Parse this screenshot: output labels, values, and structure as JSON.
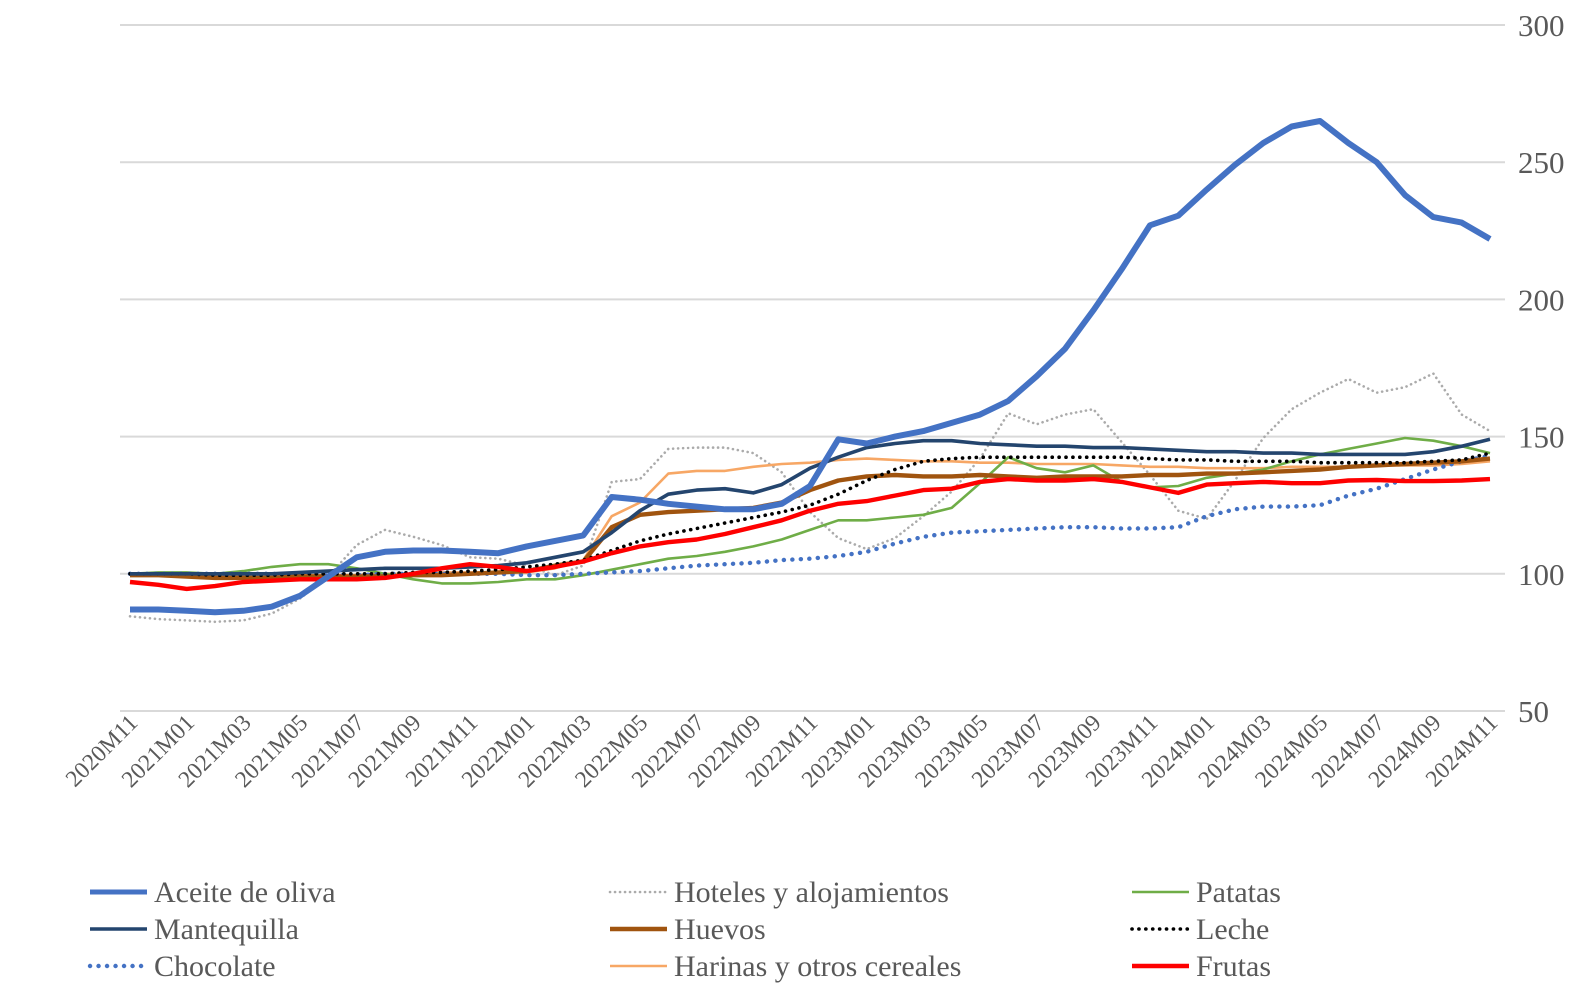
{
  "chart_data": {
    "type": "line",
    "title": "",
    "xlabel": "",
    "ylabel": "",
    "ylim": [
      50,
      300
    ],
    "yticks": [
      300,
      250,
      200,
      150,
      100,
      50
    ],
    "grid": "horizontal",
    "legend_position": "bottom",
    "axis_text_color": "#595959",
    "gridline_color": "#D9D9D9",
    "x": [
      "2020M11",
      "2020M12",
      "2021M01",
      "2021M02",
      "2021M03",
      "2021M04",
      "2021M05",
      "2021M06",
      "2021M07",
      "2021M08",
      "2021M09",
      "2021M10",
      "2021M11",
      "2021M12",
      "2022M01",
      "2022M02",
      "2022M03",
      "2022M04",
      "2022M05",
      "2022M06",
      "2022M07",
      "2022M08",
      "2022M09",
      "2022M10",
      "2022M11",
      "2022M12",
      "2023M01",
      "2023M02",
      "2023M03",
      "2023M04",
      "2023M05",
      "2023M06",
      "2023M07",
      "2023M08",
      "2023M09",
      "2023M10",
      "2023M11",
      "2023M12",
      "2024M01",
      "2024M02",
      "2024M03",
      "2024M04",
      "2024M05",
      "2024M06",
      "2024M07",
      "2024M08",
      "2024M09",
      "2024M10",
      "2024M11"
    ],
    "x_tick_labels": [
      "2020M11",
      "2021M01",
      "2021M03",
      "2021M05",
      "2021M07",
      "2021M09",
      "2021M11",
      "2022M01",
      "2022M03",
      "2022M05",
      "2022M07",
      "2022M09",
      "2022M11",
      "2023M01",
      "2023M03",
      "2023M05",
      "2023M07",
      "2023M09",
      "2023M11",
      "2024M01",
      "2024M03",
      "2024M05",
      "2024M07",
      "2024M09",
      "2024M11"
    ],
    "series": [
      {
        "name": "Hoteles y alojamientos",
        "color": "#ABABAB",
        "dash": "dotted",
        "width": 2.6,
        "values": [
          84.5,
          83.5,
          83,
          82.5,
          83,
          85.5,
          91,
          99,
          110.5,
          116,
          113.5,
          110.5,
          106,
          105.5,
          103,
          99.5,
          103,
          133.5,
          134.5,
          145.5,
          146,
          146,
          144,
          137,
          122.5,
          113,
          109,
          113,
          121,
          130,
          142,
          158.5,
          154.5,
          158,
          160,
          148,
          136,
          123,
          120,
          134,
          149.5,
          160,
          166,
          171,
          166,
          168,
          173,
          158,
          152
        ]
      },
      {
        "name": "Harinas y otros cereales",
        "color": "#F7A765",
        "dash": "solid",
        "width": 2.6,
        "values": [
          99.5,
          99.5,
          99,
          99,
          99,
          99,
          99.5,
          99.5,
          99.5,
          100,
          100,
          100.5,
          100.5,
          100.5,
          100.5,
          102,
          105,
          121,
          126,
          136.5,
          137.5,
          137.5,
          139,
          140,
          140.5,
          141.5,
          142,
          141.5,
          141,
          141,
          140.5,
          140.5,
          140,
          140,
          140,
          139.5,
          139,
          139,
          138.5,
          138.5,
          138.5,
          139,
          139,
          139,
          139.5,
          139.5,
          139.5,
          140,
          141
        ]
      },
      {
        "name": "Patatas",
        "color": "#6FAD47",
        "dash": "solid",
        "width": 2.6,
        "values": [
          100,
          100.5,
          100.5,
          100,
          101,
          102.5,
          103.5,
          103.5,
          102,
          100,
          98,
          96.5,
          96.5,
          97,
          98,
          98,
          99.5,
          101.5,
          103.5,
          105.5,
          106.5,
          108,
          110,
          112.5,
          116,
          119.5,
          119.5,
          120.5,
          121.5,
          124,
          133,
          142.5,
          138.5,
          137,
          139.5,
          133.5,
          131.5,
          132,
          135,
          136.5,
          138,
          141,
          143.5,
          145.5,
          147.5,
          149.5,
          148.5,
          146.5,
          144
        ]
      },
      {
        "name": "Chocolate",
        "color": "#4472C4",
        "dash": "dotted",
        "width": 4.4,
        "values": [
          100,
          100,
          100,
          100,
          100,
          100,
          99.5,
          99.5,
          99.5,
          100,
          100,
          100,
          100,
          100,
          99.5,
          99.5,
          100,
          100.5,
          101,
          102,
          103,
          103.5,
          104,
          105,
          105.5,
          106.5,
          108,
          111,
          113.5,
          115,
          115.5,
          116,
          116.5,
          117,
          117,
          116.5,
          116.5,
          117,
          121,
          123.5,
          124.5,
          124.5,
          125,
          128.5,
          131,
          134.5,
          138,
          141,
          143
        ]
      },
      {
        "name": "Huevos",
        "color": "#A0540F",
        "dash": "solid",
        "width": 4.4,
        "values": [
          99.5,
          99.5,
          99,
          98.5,
          98.5,
          98.5,
          99,
          99,
          99,
          99,
          99.5,
          99.5,
          100,
          100.5,
          101,
          103,
          104.5,
          117,
          121.5,
          122.5,
          123,
          123.5,
          124,
          126,
          130.5,
          134,
          135.5,
          136,
          135.5,
          135.5,
          136,
          135.5,
          135,
          135.5,
          135.5,
          135.5,
          136,
          136,
          136.5,
          136.5,
          137,
          137.5,
          138,
          139,
          139.5,
          140,
          140.5,
          141,
          142
        ]
      },
      {
        "name": "Leche",
        "color": "#000000",
        "dash": "dotted",
        "width": 3.6,
        "values": [
          100,
          100,
          100,
          99.5,
          99.5,
          99.5,
          100,
          100,
          100,
          100,
          100.5,
          100.5,
          101,
          101.5,
          102.5,
          103.5,
          105,
          108.5,
          112,
          114.5,
          116.5,
          118.5,
          120.5,
          122.5,
          125,
          129,
          134,
          138,
          141,
          142,
          142.5,
          142.5,
          142.5,
          142.5,
          142.5,
          142.5,
          142,
          141.5,
          141.5,
          141,
          141,
          141,
          140.5,
          140.5,
          140.5,
          140.5,
          141,
          141.5,
          144
        ]
      },
      {
        "name": "Mantequilla",
        "color": "#24456E",
        "dash": "solid",
        "width": 3.6,
        "values": [
          100,
          100,
          100,
          100,
          100,
          100,
          100.5,
          101,
          101.5,
          102,
          102,
          102,
          102.5,
          103,
          104,
          106,
          108,
          115,
          123,
          129,
          130.5,
          131,
          129.5,
          132.5,
          138.5,
          142.5,
          146,
          147.5,
          148.5,
          148.5,
          147.5,
          147,
          146.5,
          146.5,
          146,
          146,
          145.5,
          145,
          144.5,
          144.5,
          144,
          144,
          143.5,
          143.5,
          143.5,
          143.5,
          144.5,
          146.5,
          149
        ]
      },
      {
        "name": "Frutas",
        "color": "#FE0000",
        "dash": "solid",
        "width": 4.4,
        "values": [
          97,
          96,
          94.5,
          95.5,
          97,
          97.5,
          98,
          98,
          98,
          98.5,
          100,
          102,
          103.5,
          102.5,
          101,
          102.5,
          104.5,
          107.5,
          110,
          111.5,
          112.5,
          114.5,
          117,
          119.5,
          123,
          125.5,
          126.5,
          128.5,
          130.5,
          131,
          133.5,
          134.5,
          134,
          134,
          134.5,
          133.5,
          131.5,
          129.5,
          132.5,
          133,
          133.5,
          133,
          133,
          134,
          134.2,
          133.8,
          133.8,
          134,
          134.5
        ]
      },
      {
        "name": "Aceite de oliva",
        "color": "#4472C4",
        "dash": "solid",
        "width": 6,
        "values": [
          87,
          87,
          86.5,
          86,
          86.5,
          88,
          92,
          99,
          106,
          108,
          108.5,
          108.5,
          108,
          107.5,
          110,
          112,
          114,
          128,
          127,
          125.5,
          124.5,
          123.5,
          123.5,
          125.5,
          132,
          149,
          147.5,
          150,
          152,
          155,
          158,
          163,
          172,
          182,
          196,
          211,
          227,
          230.5,
          240,
          249,
          257,
          263,
          265,
          257,
          250,
          238,
          230,
          228,
          222
        ]
      }
    ],
    "legend_columns": [
      [
        "Aceite de oliva",
        "Mantequilla",
        "Chocolate"
      ],
      [
        "Hoteles y alojamientos",
        "Huevos",
        "Harinas y otros cereales"
      ],
      [
        "Patatas",
        "Leche",
        "Frutas"
      ]
    ]
  }
}
